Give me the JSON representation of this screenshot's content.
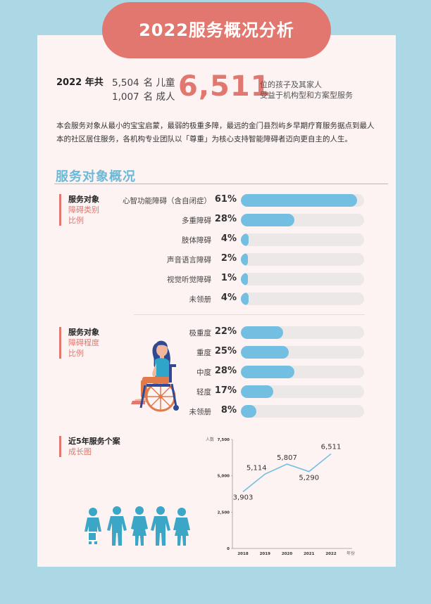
{
  "header": {
    "title": "2022服务概况分析"
  },
  "summary": {
    "year_label": "2022 年共",
    "children_count": "5,504",
    "children_unit": "名 儿童",
    "adults_count": "1,007",
    "adults_unit": "名 成人",
    "total": "6,511",
    "desc_line1": "位的孩子及其家人",
    "desc_line2": "受益于机构型和方案型服务"
  },
  "intro": "本会服务对象从最小的宝宝启蒙，最弱的极重多障，最远的金门县烈屿乡早期疗育服务据点到最人本的社区居住服务，各机构专业团队以「尊重」为核心支持智能障碍者迈向更自主的人生。",
  "section": {
    "title": "服务对象概况"
  },
  "group1": {
    "label1": "服务对象",
    "label2": "障碍类别",
    "label3": "比例",
    "items": [
      {
        "label": "心智功能障碍（含自闭症）",
        "pct_text": "61%",
        "value": 61
      },
      {
        "label": "多重障碍",
        "pct_text": "28%",
        "value": 28
      },
      {
        "label": "肢体障碍",
        "pct_text": "4%",
        "value": 4
      },
      {
        "label": "声音语言障碍",
        "pct_text": "2%",
        "value": 2
      },
      {
        "label": "视觉听觉障碍",
        "pct_text": "1%",
        "value": 1
      },
      {
        "label": "未领册",
        "pct_text": "4%",
        "value": 4
      }
    ]
  },
  "group2": {
    "label1": "服务对象",
    "label2": "障碍程度",
    "label3": "比例",
    "items": [
      {
        "label": "极重度",
        "pct_text": "22%",
        "value": 22
      },
      {
        "label": "重度",
        "pct_text": "25%",
        "value": 25
      },
      {
        "label": "中度",
        "pct_text": "28%",
        "value": 28
      },
      {
        "label": "轻度",
        "pct_text": "17%",
        "value": 17
      },
      {
        "label": "未领册",
        "pct_text": "8%",
        "value": 8
      }
    ]
  },
  "group3": {
    "label1": "近5年服务个案",
    "label2": "成长图"
  },
  "chart_data": {
    "type": "line",
    "ylabel": "人数",
    "xlabel": "年份",
    "x": [
      "2018",
      "2019",
      "2020",
      "2021",
      "2022"
    ],
    "values": [
      3903,
      5114,
      5807,
      5290,
      6511
    ],
    "value_labels": [
      "3,903",
      "5,114",
      "5,807",
      "5,290",
      "6,511"
    ],
    "yticks": [
      "0",
      "2,500",
      "5,000",
      "7,500"
    ],
    "ylim": [
      0,
      7500
    ],
    "line_color": "#72bfe2"
  },
  "colors": {
    "accent": "#e1776e",
    "blue": "#72bfe2",
    "background": "#acd8e5"
  }
}
